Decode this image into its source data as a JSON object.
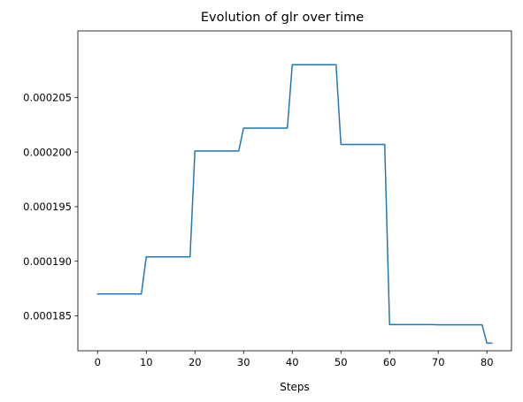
{
  "chart_data": {
    "type": "line",
    "title": "Evolution of glr over time",
    "xlabel": "Steps",
    "ylabel": "",
    "xlim": [
      -4.05,
      85.05
    ],
    "ylim": [
      0.0001818,
      0.0002111
    ],
    "xticks": [
      0,
      10,
      20,
      30,
      40,
      50,
      60,
      70,
      80
    ],
    "xtick_labels": [
      "0",
      "10",
      "20",
      "30",
      "40",
      "50",
      "60",
      "70",
      "80"
    ],
    "yticks": [
      0.000185,
      0.00019,
      0.000195,
      0.0002,
      0.000205
    ],
    "ytick_labels": [
      "0.000185",
      "0.000190",
      "0.000195",
      "0.000200",
      "0.000205"
    ],
    "grid": false,
    "series": [
      {
        "color": "#1f77b4",
        "x": [
          0,
          9,
          10,
          19,
          20,
          29,
          30,
          39,
          40,
          49,
          50,
          59,
          60,
          69,
          70,
          79,
          80,
          81
        ],
        "y": [
          0.000187,
          0.000187,
          0.0001904,
          0.0001904,
          0.0002001,
          0.0002001,
          0.0002022,
          0.0002022,
          0.000208,
          0.000208,
          0.0002007,
          0.0002007,
          0.0001842,
          0.0001842,
          0.00018418,
          0.00018418,
          0.0001825,
          0.0001825
        ]
      }
    ]
  }
}
